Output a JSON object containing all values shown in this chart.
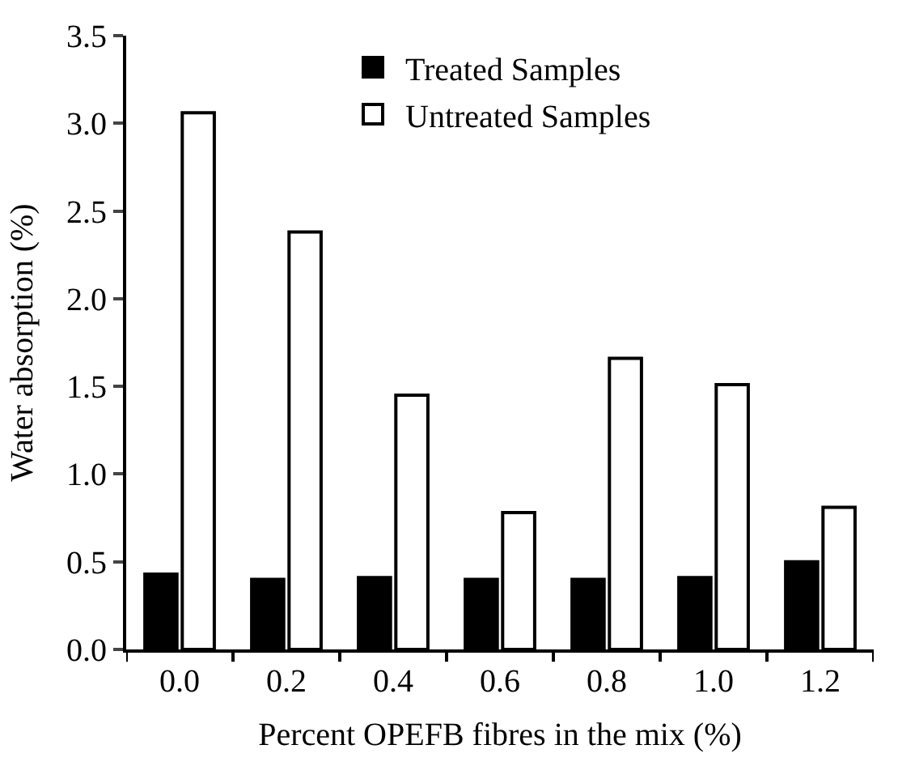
{
  "chart_data": {
    "type": "bar",
    "xlabel": "Percent OPEFB fibres in the mix (%)",
    "ylabel": "Water absorption (%)",
    "categories": [
      "0.0",
      "0.2",
      "0.4",
      "0.6",
      "0.8",
      "1.0",
      "1.2"
    ],
    "series": [
      {
        "name": "Treated Samples",
        "color": "#000000",
        "values": [
          0.43,
          0.4,
          0.41,
          0.4,
          0.4,
          0.41,
          0.5
        ]
      },
      {
        "name": "Untreated Samples",
        "color": "#ffffff",
        "values": [
          3.06,
          2.38,
          1.45,
          0.78,
          1.66,
          1.51,
          0.81
        ]
      }
    ],
    "ylim": [
      0,
      3.5
    ],
    "yticks": [
      {
        "value": 0,
        "label": "0.0"
      },
      0.5,
      {
        "value": 1,
        "label": "1.0"
      },
      1.5,
      {
        "value": 2,
        "label": "2.0"
      },
      2.5,
      {
        "value": 3,
        "label": "3.0"
      },
      3.5
    ],
    "legend": "top"
  }
}
